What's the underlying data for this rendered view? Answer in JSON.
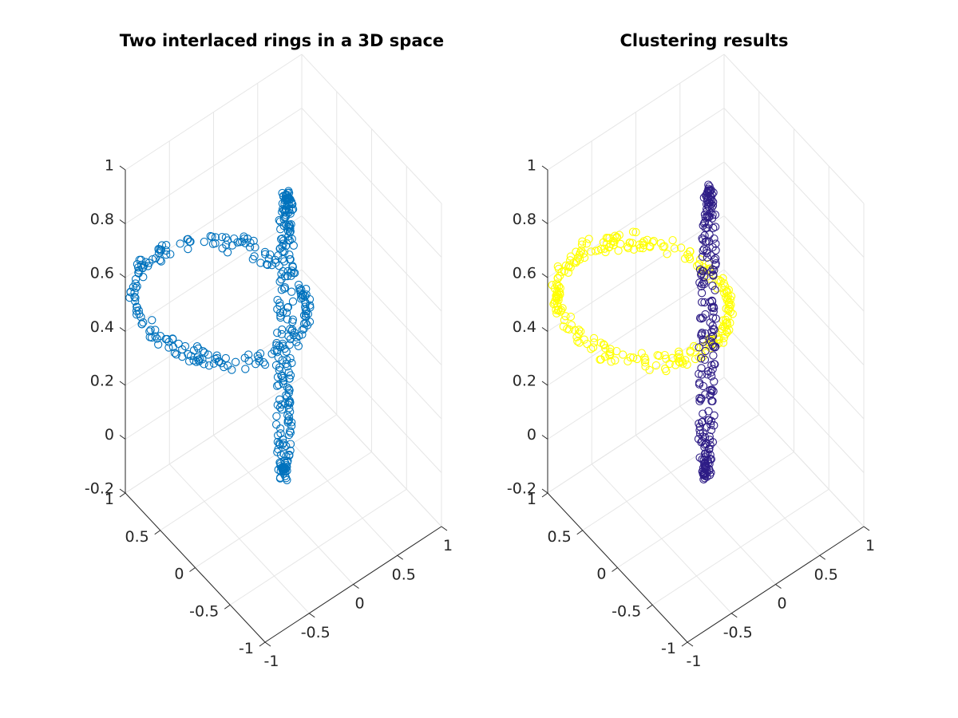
{
  "chart_data": [
    {
      "type": "scatter3d",
      "title": "Two interlaced rings in a 3D space",
      "xlim": [
        -1,
        1
      ],
      "ylim": [
        -1,
        1
      ],
      "zlim": [
        -0.2,
        1
      ],
      "x_ticks": [
        "-1",
        "-0.5",
        "0",
        "0.5",
        "1"
      ],
      "y_ticks": [
        "-1",
        "-0.5",
        "0",
        "0.5",
        "1"
      ],
      "z_ticks": [
        "-0.2",
        "0",
        "0.2",
        "0.4",
        "0.6",
        "0.8",
        "1"
      ],
      "grid": true,
      "series": [
        {
          "color": "#0072bd",
          "marker": "circle",
          "ring": "ring-a",
          "rings": [
            {
              "center": [
                -0.4,
                0.4,
                0.55
              ],
              "axis_u": [
                0.55,
                -0.55,
                0
              ],
              "axis_v": [
                0,
                0,
                0.22
              ],
              "count": 220
            },
            {
              "center": [
                0.1,
                0.1,
                0.4
              ],
              "axis_u": [
                0,
                0,
                0.5
              ],
              "axis_v": [
                0.3,
                0.3,
                0
              ],
              "count": 220
            }
          ]
        }
      ]
    },
    {
      "type": "scatter3d",
      "title": "Clustering results",
      "xlim": [
        -1,
        1
      ],
      "ylim": [
        -1,
        1
      ],
      "zlim": [
        -0.2,
        1
      ],
      "x_ticks": [
        "-1",
        "-0.5",
        "0",
        "0.5",
        "1"
      ],
      "y_ticks": [
        "-1",
        "-0.5",
        "0",
        "0.5",
        "1"
      ],
      "z_ticks": [
        "-0.2",
        "0",
        "0.2",
        "0.4",
        "0.6",
        "0.8",
        "1"
      ],
      "grid": true,
      "series": [
        {
          "color": "#ffff00",
          "marker": "circle",
          "rings": [
            {
              "center": [
                -0.4,
                0.4,
                0.55
              ],
              "axis_u": [
                0.55,
                -0.55,
                0
              ],
              "axis_v": [
                0,
                0,
                0.22
              ],
              "count": 260
            }
          ]
        },
        {
          "color": "#2e1d86",
          "marker": "circle",
          "rings": [
            {
              "center": [
                0.1,
                0.1,
                0.4
              ],
              "axis_u": [
                0,
                0,
                0.5
              ],
              "axis_v": [
                0.3,
                0.3,
                0
              ],
              "count": 240
            }
          ]
        }
      ]
    }
  ]
}
